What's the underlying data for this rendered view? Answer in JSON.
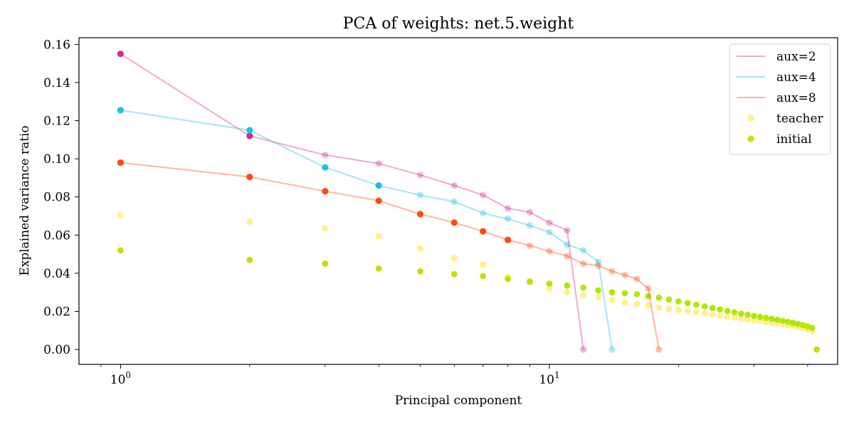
{
  "chart_data": {
    "type": "scatter",
    "title": "PCA of weights: net.5.weight",
    "xlabel": "Principal component",
    "ylabel": "Explained variance ratio",
    "xscale": "log",
    "xlim": [
      0.8,
      47
    ],
    "ylim": [
      -0.0078,
      0.1635
    ],
    "xticks": [
      {
        "value": 1,
        "base": "10",
        "exp": "0"
      },
      {
        "value": 10,
        "base": "10",
        "exp": "1"
      }
    ],
    "yticks": [
      {
        "value": 0.0,
        "label": "0.00"
      },
      {
        "value": 0.02,
        "label": "0.02"
      },
      {
        "value": 0.04,
        "label": "0.04"
      },
      {
        "value": 0.06,
        "label": "0.06"
      },
      {
        "value": 0.08,
        "label": "0.08"
      },
      {
        "value": 0.1,
        "label": "0.10"
      },
      {
        "value": 0.12,
        "label": "0.12"
      },
      {
        "value": 0.14,
        "label": "0.14"
      },
      {
        "value": 0.16,
        "label": "0.16"
      }
    ],
    "grid": false,
    "legend": {
      "position": "top-right",
      "entries": [
        {
          "label": "aux=2",
          "kind": "line",
          "color": "#d6298e"
        },
        {
          "label": "aux=4",
          "kind": "line",
          "color": "#1ac3e0"
        },
        {
          "label": "aux=8",
          "kind": "line",
          "color": "#ff4a12"
        },
        {
          "label": "teacher",
          "kind": "dot",
          "color": "#fff08a"
        },
        {
          "label": "initial",
          "kind": "dot",
          "color": "#b2e60c"
        }
      ]
    },
    "series": [
      {
        "name": "teacher",
        "kind": "scatter",
        "color": "#fff08a",
        "x": [
          1,
          2,
          3,
          4,
          5,
          6,
          7,
          8,
          9,
          10,
          11,
          12,
          13,
          14,
          15,
          16,
          17,
          18,
          19,
          20,
          21,
          22,
          23,
          24,
          25,
          26,
          27,
          28,
          29,
          30,
          31,
          32,
          33,
          34,
          35,
          36,
          37,
          38,
          39,
          40,
          41,
          42
        ],
        "y": [
          0.0705,
          0.067,
          0.0635,
          0.0595,
          0.053,
          0.048,
          0.0445,
          0.038,
          0.036,
          0.032,
          0.03,
          0.0285,
          0.0275,
          0.026,
          0.0245,
          0.0238,
          0.023,
          0.022,
          0.0212,
          0.0208,
          0.0202,
          0.0195,
          0.019,
          0.0185,
          0.0178,
          0.0172,
          0.0167,
          0.0162,
          0.0157,
          0.0152,
          0.0148,
          0.0144,
          0.014,
          0.0136,
          0.0132,
          0.0127,
          0.0122,
          0.0117,
          0.0112,
          0.0105,
          0.0098,
          0.0
        ]
      },
      {
        "name": "initial",
        "kind": "scatter",
        "color": "#b2e60c",
        "x": [
          1,
          2,
          3,
          4,
          5,
          6,
          7,
          8,
          9,
          10,
          11,
          12,
          13,
          14,
          15,
          16,
          17,
          18,
          19,
          20,
          21,
          22,
          23,
          24,
          25,
          26,
          27,
          28,
          29,
          30,
          31,
          32,
          33,
          34,
          35,
          36,
          37,
          38,
          39,
          40,
          41,
          42
        ],
        "y": [
          0.052,
          0.047,
          0.045,
          0.0425,
          0.041,
          0.0395,
          0.0385,
          0.037,
          0.0355,
          0.0345,
          0.0335,
          0.0325,
          0.031,
          0.03,
          0.0295,
          0.029,
          0.028,
          0.0272,
          0.0262,
          0.0252,
          0.0243,
          0.0235,
          0.0226,
          0.0218,
          0.021,
          0.0202,
          0.0195,
          0.0188,
          0.0182,
          0.0176,
          0.0171,
          0.0166,
          0.0161,
          0.0156,
          0.015,
          0.0145,
          0.014,
          0.0134,
          0.0128,
          0.0121,
          0.0113,
          0.0
        ]
      },
      {
        "name": "aux=2",
        "kind": "line",
        "color": "#d6298e",
        "solid_points": 2,
        "x": [
          1,
          2,
          3,
          4,
          5,
          6,
          7,
          8,
          9,
          10,
          11,
          12
        ],
        "y": [
          0.155,
          0.112,
          0.102,
          0.0975,
          0.0915,
          0.086,
          0.081,
          0.074,
          0.072,
          0.0665,
          0.0625,
          0.0
        ]
      },
      {
        "name": "aux=4",
        "kind": "line",
        "color": "#1ac3e0",
        "solid_points": 4,
        "x": [
          1,
          2,
          3,
          4,
          5,
          6,
          7,
          8,
          9,
          10,
          11,
          12,
          13,
          14
        ],
        "y": [
          0.1255,
          0.115,
          0.0955,
          0.086,
          0.081,
          0.0775,
          0.0715,
          0.0685,
          0.065,
          0.0615,
          0.055,
          0.052,
          0.046,
          0.0
        ]
      },
      {
        "name": "aux=8",
        "kind": "line",
        "color": "#ff4a12",
        "solid_points": 8,
        "x": [
          1,
          2,
          3,
          4,
          5,
          6,
          7,
          8,
          9,
          10,
          11,
          12,
          13,
          14,
          15,
          16,
          17,
          18
        ],
        "y": [
          0.098,
          0.0905,
          0.083,
          0.078,
          0.071,
          0.0665,
          0.062,
          0.0575,
          0.0545,
          0.0515,
          0.049,
          0.045,
          0.044,
          0.041,
          0.039,
          0.037,
          0.032,
          0.0
        ]
      }
    ]
  }
}
